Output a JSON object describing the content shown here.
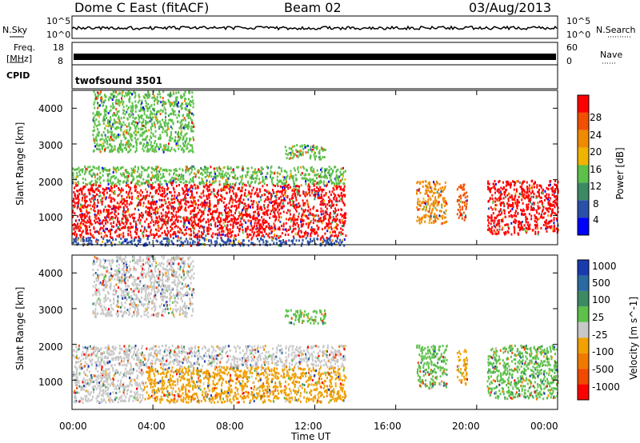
{
  "header": {
    "station": "Dome C East (fitACF)",
    "beam": "Beam 02",
    "date": "03/Aug/2013"
  },
  "side_labels": {
    "nsky": "N.Sky",
    "freq_line1": "Freq.",
    "freq_line2": "[MHz]",
    "cpid": "CPID",
    "nsearch": "N.Search",
    "nave": "Nave"
  },
  "panel_ticks": {
    "nsky_left_top": "10^5",
    "nsky_left_bottom": "10^0",
    "nsky_right_top": "10^5",
    "nsky_right_bottom": "10^0",
    "freq_left_top": "18",
    "freq_left_bottom": "8",
    "nave_right_top": "60",
    "nave_right_bottom": "0"
  },
  "cpid_text": "twofsound 3501",
  "colors": {
    "power_scale": [
      "#0000ff",
      "#2a50a8",
      "#3c8a64",
      "#5cc04a",
      "#f0b400",
      "#f08a00",
      "#f05000",
      "#ff0000"
    ],
    "velocity_scale": [
      "#ff0000",
      "#f04a00",
      "#f07a00",
      "#f0a000",
      "#c8c8c8",
      "#5cc04a",
      "#3c8a64",
      "#2a6aa0",
      "#1a3ab0"
    ]
  },
  "chart_data": [
    {
      "type": "heatmap",
      "name": "power",
      "xlabel": "",
      "ylabel": "Slant Range [km]",
      "xlim": [
        "00:00",
        "24:00"
      ],
      "ylim": [
        180,
        4500
      ],
      "yticks": [
        "1000",
        "2000",
        "3000",
        "4000"
      ],
      "colorbar": {
        "label": "Power [dB]",
        "ticks": [
          "4",
          "8",
          "12",
          "16",
          "20",
          "24",
          "28"
        ],
        "range": [
          0,
          30
        ]
      },
      "echo_regions": [
        {
          "t_start": 0.0,
          "t_end": 13.5,
          "range_low": 400,
          "range_high": 1900,
          "power_db": 28
        },
        {
          "t_start": 0.0,
          "t_end": 13.5,
          "range_low": 1900,
          "range_high": 2400,
          "power_db": 14
        },
        {
          "t_start": 0.0,
          "t_end": 13.5,
          "range_low": 180,
          "range_high": 400,
          "power_db": 6
        },
        {
          "t_start": 1.0,
          "t_end": 6.0,
          "range_low": 2800,
          "range_high": 4500,
          "power_db": 12
        },
        {
          "t_start": 10.5,
          "t_end": 12.5,
          "range_low": 2600,
          "range_high": 3000,
          "power_db": 14
        },
        {
          "t_start": 17.0,
          "t_end": 18.5,
          "range_low": 800,
          "range_high": 2000,
          "power_db": 22
        },
        {
          "t_start": 19.0,
          "t_end": 19.5,
          "range_low": 900,
          "range_high": 1900,
          "power_db": 24
        },
        {
          "t_start": 20.5,
          "t_end": 24.0,
          "range_low": 500,
          "range_high": 2000,
          "power_db": 28
        }
      ]
    },
    {
      "type": "heatmap",
      "name": "velocity",
      "xlabel": "Time UT",
      "ylabel": "Slant Range [km]",
      "xlim": [
        "00:00",
        "24:00"
      ],
      "xticks": [
        "00:00",
        "04:00",
        "08:00",
        "12:00",
        "16:00",
        "20:00",
        "00:00"
      ],
      "ylim": [
        180,
        4500
      ],
      "yticks": [
        "1000",
        "2000",
        "3000",
        "4000"
      ],
      "colorbar": {
        "label": "Velocity [m s^-1]",
        "ticks": [
          "-1000",
          "-500",
          "-100",
          "-25",
          "25",
          "100",
          "500",
          "1000"
        ],
        "range": [
          -1200,
          1200
        ]
      },
      "echo_regions": [
        {
          "t_start": 0.0,
          "t_end": 3.5,
          "range_low": 400,
          "range_high": 1400,
          "velocity": 100
        },
        {
          "t_start": 3.5,
          "t_end": 13.5,
          "range_low": 400,
          "range_high": 1400,
          "velocity": -200
        },
        {
          "t_start": 0.0,
          "t_end": 13.5,
          "range_low": 1400,
          "range_high": 2000,
          "velocity": 0
        },
        {
          "t_start": 1.0,
          "t_end": 6.0,
          "range_low": 2800,
          "range_high": 4500,
          "velocity": -50
        },
        {
          "t_start": 10.5,
          "t_end": 12.5,
          "range_low": 2600,
          "range_high": 3000,
          "velocity": 150
        },
        {
          "t_start": 17.0,
          "t_end": 18.5,
          "range_low": 800,
          "range_high": 2000,
          "velocity": 200
        },
        {
          "t_start": 19.0,
          "t_end": 19.5,
          "range_low": 900,
          "range_high": 1900,
          "velocity": -300
        },
        {
          "t_start": 20.5,
          "t_end": 24.0,
          "range_low": 500,
          "range_high": 2000,
          "velocity": 300
        }
      ]
    }
  ]
}
